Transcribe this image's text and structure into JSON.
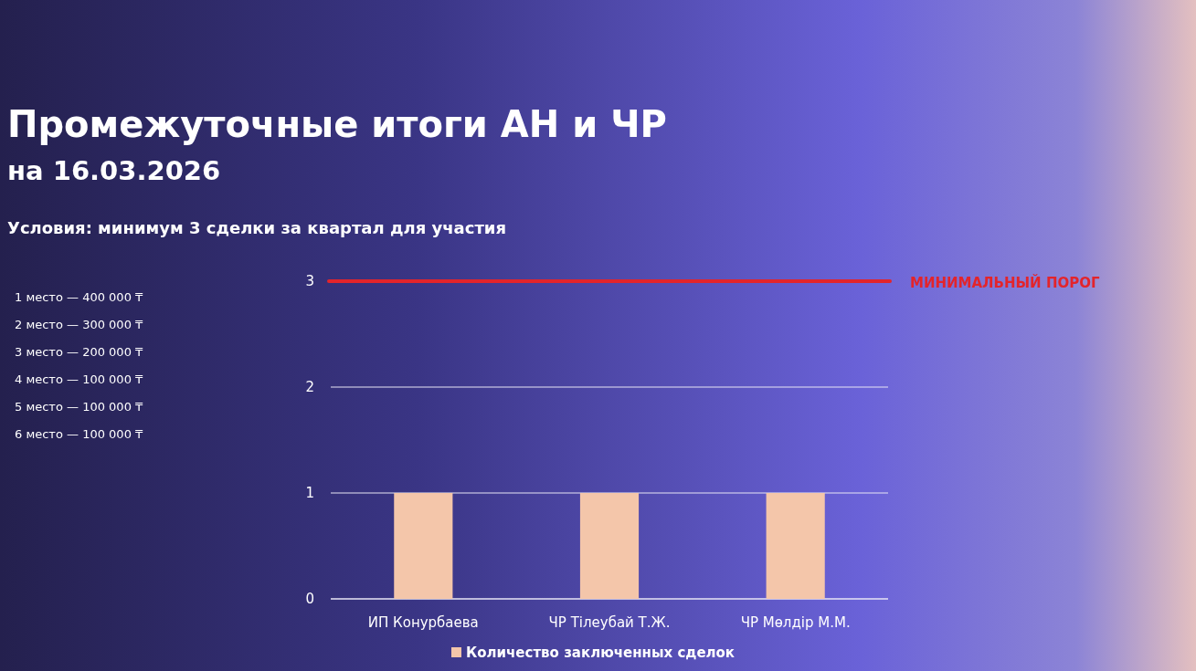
{
  "chart_data": {
    "type": "bar",
    "title": "Промежуточные итоги АН и ЧР",
    "subtitle": "на 16.03.2026",
    "annotations": [
      "Условия: минимум 3 сделки за квартал для участия",
      "1 место — 400 000 ₸",
      "2 место — 300 000 ₸",
      "3 место — 200 000 ₸",
      "4 место — 100 000 ₸",
      "5 место — 100 000 ₸",
      "6 место — 100 000 ₸"
    ],
    "categories": [
      "ИП Конурбаева",
      "ЧР Тілеубай Т.Ж.",
      "ЧР Мөлдір М.М."
    ],
    "series": [
      {
        "name": "Количество заключенных сделок",
        "color": "#f4c6aa",
        "values": [
          1,
          1,
          1
        ]
      }
    ],
    "ylim": [
      0,
      3
    ],
    "yticks": [
      0,
      1,
      2,
      3
    ],
    "grid": "y",
    "legend": "bottom",
    "ref_lines": [
      {
        "axis": "y",
        "value": 3,
        "label": "МИНИМАЛЬНЫЙ ПОРОГ",
        "color": "#e3242b"
      }
    ]
  }
}
